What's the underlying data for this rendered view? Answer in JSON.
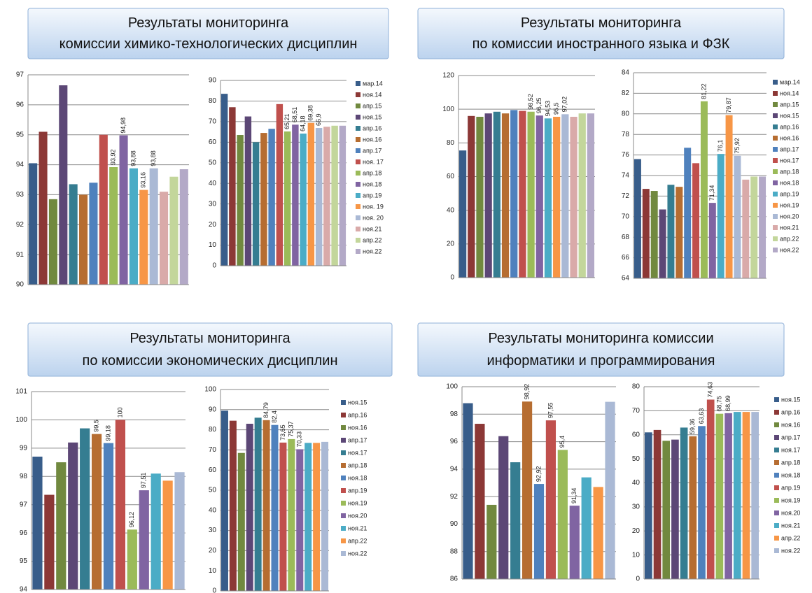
{
  "chart_data": [
    {
      "title": [
        "Результаты мониторинга",
        "комиссии химико-технологических дисциплин"
      ],
      "categories": [
        "мар.14",
        "ноя.14",
        "апр.15",
        "ноя.15",
        "апр.16",
        "ноя.16",
        "апр.17",
        "ноя. 17",
        "апр.18",
        "ноя.18",
        "апр.19",
        "ноя. 19",
        "ноя. 20",
        "ноя.21",
        "апр.22",
        "ноя.22"
      ],
      "colors": [
        "#385d8a",
        "#8c3836",
        "#71893f",
        "#5c4776",
        "#357d91",
        "#b66d31",
        "#4f81bd",
        "#c0504d",
        "#9bbb59",
        "#8064a2",
        "#4bacc6",
        "#f79646",
        "#aab9d5",
        "#d9aaa9",
        "#c3d69b",
        "#b3a9c7"
      ],
      "charts": [
        {
          "type": "bar",
          "values": [
            94.05,
            95.1,
            92.85,
            96.65,
            93.35,
            93.0,
            93.4,
            95.0,
            93.92,
            94.98,
            93.88,
            93.16,
            93.88,
            93.1,
            93.6,
            93.85
          ],
          "value_labels": [
            null,
            null,
            null,
            null,
            null,
            null,
            null,
            null,
            "93,92",
            "94,98",
            "93,88",
            "93,16",
            "93,88",
            null,
            null,
            null
          ],
          "ylim": [
            90,
            97
          ],
          "yticks": [
            90,
            91,
            92,
            93,
            94,
            95,
            96,
            97
          ],
          "grid": true
        },
        {
          "type": "bar",
          "values": [
            83.5,
            77,
            63.5,
            72.5,
            60,
            64.5,
            66.5,
            78.5,
            65.21,
            68.51,
            64.18,
            69.38,
            66.9,
            67.5,
            68,
            68
          ],
          "value_labels": [
            null,
            null,
            null,
            null,
            null,
            null,
            null,
            null,
            "65,21",
            "68,51",
            "64,18",
            "69,38",
            "66,9",
            null,
            null,
            null
          ],
          "ylim": [
            0,
            90
          ],
          "yticks": [
            0,
            10,
            20,
            30,
            40,
            50,
            60,
            70,
            80,
            90
          ],
          "grid": true
        }
      ]
    },
    {
      "title": [
        "Результаты мониторинга",
        "по комиссии иностранного языка и ФЗК"
      ],
      "categories": [
        "мар.14",
        "ноя.14",
        "апр.15",
        "ноя.15",
        "апр.16",
        "ноя.16",
        "апр.17",
        "ноя.17",
        "апр.18",
        "ноя.18",
        "апр.19",
        "ноя.19",
        "ноя.20",
        "ноя.21",
        "апр.22",
        "ноя.22"
      ],
      "colors": [
        "#385d8a",
        "#8c3836",
        "#71893f",
        "#5c4776",
        "#357d91",
        "#b66d31",
        "#4f81bd",
        "#c0504d",
        "#9bbb59",
        "#8064a2",
        "#4bacc6",
        "#f79646",
        "#aab9d5",
        "#d9aaa9",
        "#c3d69b",
        "#b3a9c7"
      ],
      "charts": [
        {
          "type": "bar",
          "values": [
            75.5,
            96,
            95.5,
            97.5,
            98.5,
            97.5,
            99.5,
            99,
            98.52,
            96.25,
            94.53,
            95.5,
            97.02,
            95.5,
            97.5,
            97.5
          ],
          "value_labels": [
            null,
            null,
            null,
            null,
            null,
            null,
            null,
            null,
            "98,52",
            "96,25",
            "94,53",
            "95,5",
            "97,02",
            null,
            null,
            null
          ],
          "ylim": [
            0,
            120
          ],
          "yticks": [
            0,
            20,
            40,
            60,
            80,
            100,
            120
          ],
          "grid": true
        },
        {
          "type": "bar",
          "values": [
            75.6,
            72.7,
            72.5,
            70.7,
            73.1,
            72.9,
            76.7,
            75.2,
            81.22,
            71.34,
            76.1,
            79.87,
            75.92,
            73.6,
            73.9,
            73.9
          ],
          "value_labels": [
            null,
            null,
            null,
            null,
            null,
            null,
            null,
            null,
            "81,22",
            "71,34",
            "76,1",
            "79,87",
            "75,92",
            null,
            null,
            null
          ],
          "ylim": [
            64,
            84
          ],
          "yticks": [
            64,
            66,
            68,
            70,
            72,
            74,
            76,
            78,
            80,
            82,
            84
          ],
          "grid": true
        }
      ]
    },
    {
      "title": [
        "Результаты мониторинга",
        "по комиссии экономических дисциплин"
      ],
      "categories": [
        "ноя.15",
        "апр.16",
        "ноя.16",
        "апр.17",
        "ноя.17",
        "апр.18",
        "ноя.18",
        "апр.19",
        "ноя.19",
        "ноя.20",
        "ноя.21",
        "апр.22",
        "ноя.22"
      ],
      "colors": [
        "#385d8a",
        "#8c3836",
        "#71893f",
        "#5c4776",
        "#357d91",
        "#b66d31",
        "#4f81bd",
        "#c0504d",
        "#9bbb59",
        "#8064a2",
        "#4bacc6",
        "#f79646",
        "#aab9d5"
      ],
      "charts": [
        {
          "type": "bar",
          "values": [
            98.7,
            97.35,
            98.5,
            99.2,
            99.7,
            99.5,
            99.18,
            100,
            96.12,
            97.51,
            98.1,
            97.85,
            98.15
          ],
          "value_labels": [
            null,
            null,
            null,
            null,
            null,
            "99,5",
            "99,18",
            "100",
            "96,12",
            "97,51",
            null,
            null,
            null
          ],
          "ylim": [
            94,
            101
          ],
          "yticks": [
            94,
            95,
            96,
            97,
            98,
            99,
            100,
            101
          ],
          "grid": true
        },
        {
          "type": "bar",
          "values": [
            89.5,
            84.5,
            68.5,
            83,
            86,
            84.79,
            82.4,
            73.65,
            75.37,
            70.33,
            73.5,
            73.5,
            74
          ],
          "value_labels": [
            null,
            null,
            null,
            null,
            null,
            "84,79",
            "82,4",
            "73,65",
            "75,37",
            "70,33",
            null,
            null,
            null
          ],
          "ylim": [
            0,
            100
          ],
          "yticks": [
            0,
            10,
            20,
            30,
            40,
            50,
            60,
            70,
            80,
            90,
            100
          ],
          "grid": true
        }
      ]
    },
    {
      "title": [
        "Результаты мониторинга комиссии",
        "информатики и программирования"
      ],
      "categories": [
        "ноя.15",
        "апр.16",
        "ноя.16",
        "апр.17",
        "ноя.17",
        "апр.18",
        "ноя.18",
        "апр.19",
        "ноя.19",
        "ноя.20",
        "ноя.21",
        "апр.22",
        "ноя.22"
      ],
      "colors": [
        "#385d8a",
        "#8c3836",
        "#71893f",
        "#5c4776",
        "#357d91",
        "#b66d31",
        "#4f81bd",
        "#c0504d",
        "#9bbb59",
        "#8064a2",
        "#4bacc6",
        "#f79646",
        "#aab9d5"
      ],
      "charts": [
        {
          "type": "bar",
          "values": [
            98.8,
            97.3,
            91.4,
            96.4,
            94.5,
            98.92,
            92.92,
            97.55,
            95.4,
            91.34,
            93.4,
            92.7,
            98.9
          ],
          "value_labels": [
            null,
            null,
            null,
            null,
            null,
            "98,92",
            "92,92",
            "97,55",
            "95,4",
            "91,34",
            null,
            null,
            null
          ],
          "ylim": [
            86,
            100
          ],
          "yticks": [
            86,
            88,
            90,
            92,
            94,
            96,
            98,
            100
          ],
          "grid": true
        },
        {
          "type": "bar",
          "values": [
            61,
            62,
            57.5,
            58,
            63,
            59.36,
            63.63,
            74.63,
            68.75,
            68.99,
            69.5,
            69.5,
            69.5
          ],
          "value_labels": [
            null,
            null,
            null,
            null,
            null,
            "59,36",
            "63,63",
            "74,63",
            "68,75",
            "68,99",
            null,
            null,
            null
          ],
          "ylim": [
            0,
            80
          ],
          "yticks": [
            0,
            10,
            20,
            30,
            40,
            50,
            60,
            70,
            80
          ],
          "grid": true
        }
      ]
    }
  ]
}
